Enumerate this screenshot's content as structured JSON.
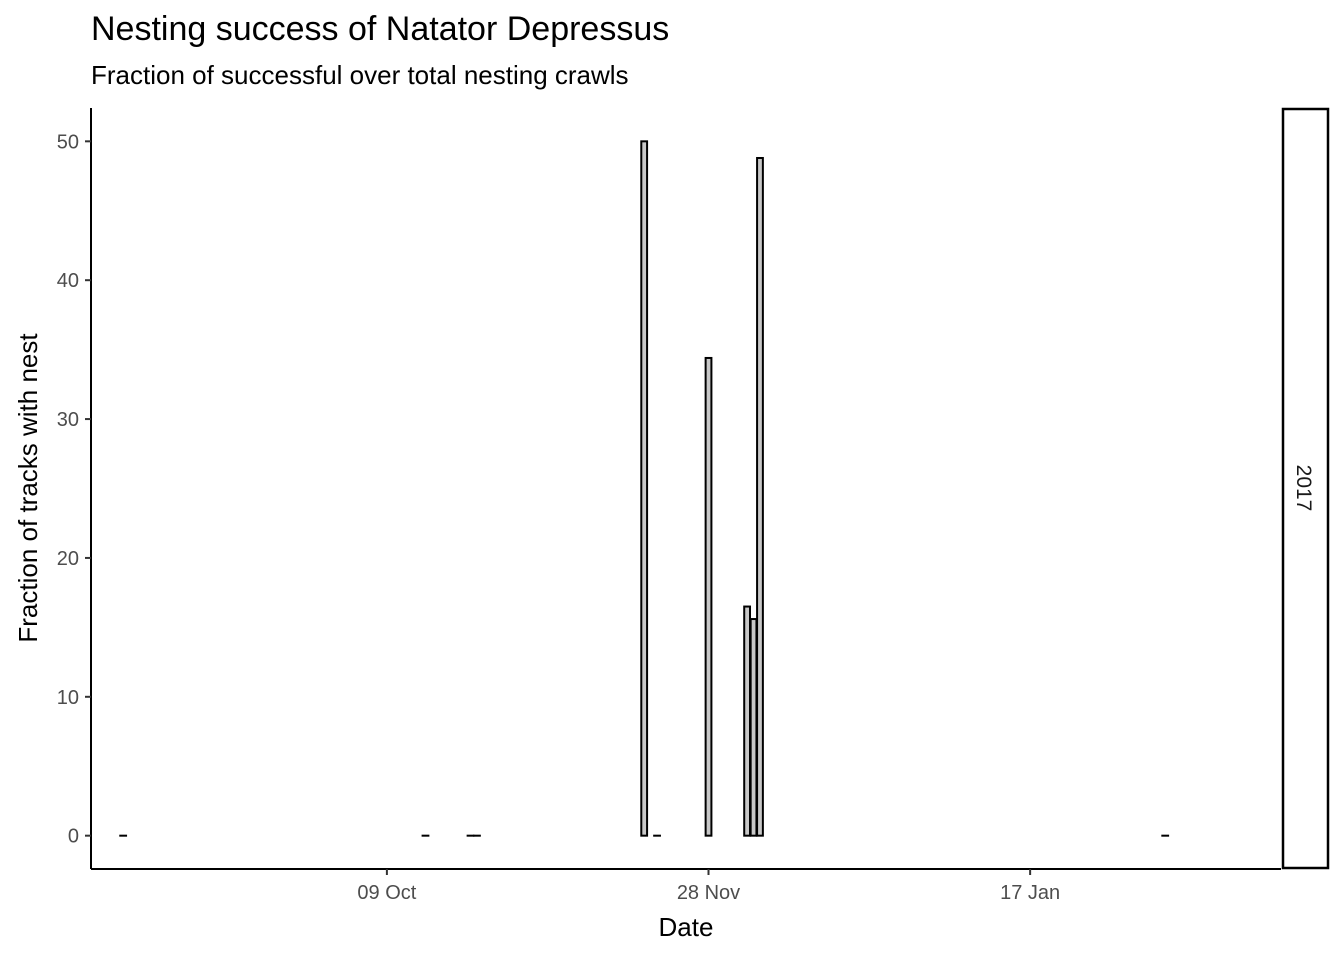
{
  "chart_data": {
    "type": "bar",
    "title": "Nesting success of Natator Depressus",
    "subtitle": "Fraction of successful over total nesting crawls",
    "xlabel": "Date",
    "ylabel": "Fraction of tracks with nest",
    "facet_label": "2017",
    "x_ticks": [
      "2017-10-09",
      "2017-11-28",
      "2018-01-17"
    ],
    "x_tick_labels": [
      "09 Oct",
      "28 Nov",
      "17 Jan"
    ],
    "y_ticks": [
      0,
      10,
      20,
      30,
      40,
      50
    ],
    "xlim": [
      "2017-08-24",
      "2018-02-25"
    ],
    "ylim": [
      -2.4,
      52.4
    ],
    "grid": false,
    "bar_fill": "#c8c8c8",
    "bar_outline": "#000000",
    "x": [
      "2017-08-29",
      "2017-10-15",
      "2017-10-22",
      "2017-10-23",
      "2017-11-18",
      "2017-11-20",
      "2017-11-28",
      "2017-12-04",
      "2017-12-05",
      "2017-12-06",
      "2018-02-07"
    ],
    "values": [
      0,
      0,
      0,
      0,
      50,
      0,
      34.4,
      16.5,
      15.6,
      48.8,
      0
    ]
  }
}
